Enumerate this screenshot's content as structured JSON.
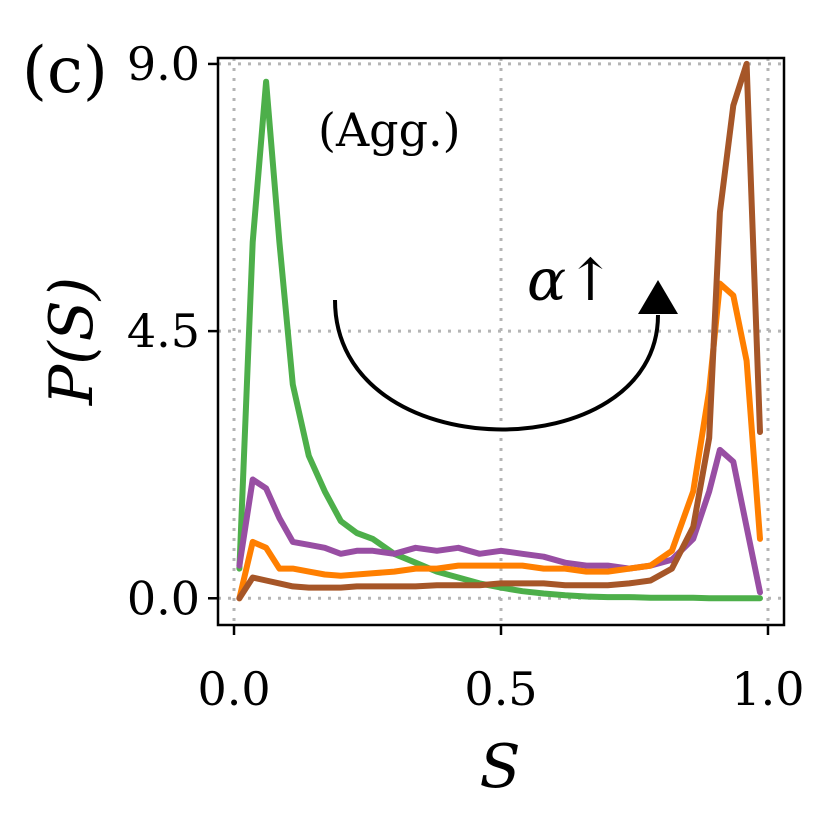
{
  "chart_data": {
    "type": "line",
    "panel_label": "(c)",
    "annotation": "(Agg.)",
    "arrow_label": "α↑",
    "xlabel": "S",
    "ylabel": "P(S)",
    "xlim": [
      -0.03,
      1.03
    ],
    "ylim": [
      -0.45,
      9.1
    ],
    "xticks": [
      0.0,
      0.5,
      1.0
    ],
    "xtick_labels": [
      "0.0",
      "0.5",
      "1.0"
    ],
    "yticks": [
      0.0,
      4.5,
      9.0
    ],
    "ytick_labels": [
      "0.0",
      "4.5",
      "9.0"
    ],
    "grid": true,
    "x": [
      0.01,
      0.035,
      0.06,
      0.085,
      0.11,
      0.14,
      0.17,
      0.2,
      0.23,
      0.26,
      0.3,
      0.34,
      0.38,
      0.42,
      0.46,
      0.5,
      0.54,
      0.58,
      0.62,
      0.66,
      0.7,
      0.74,
      0.78,
      0.82,
      0.86,
      0.89,
      0.91,
      0.935,
      0.96,
      0.985
    ],
    "series": [
      {
        "name": "green",
        "color": "#4daf4a",
        "values": [
          0.5,
          6.0,
          8.7,
          6.0,
          3.6,
          2.4,
          1.8,
          1.3,
          1.1,
          1.0,
          0.75,
          0.6,
          0.45,
          0.35,
          0.25,
          0.18,
          0.12,
          0.08,
          0.05,
          0.03,
          0.02,
          0.02,
          0.01,
          0.01,
          0.01,
          0.0,
          0.0,
          0.0,
          0.0,
          0.0
        ]
      },
      {
        "name": "purple",
        "color": "#984ea3",
        "values": [
          0.55,
          2.0,
          1.85,
          1.35,
          0.95,
          0.9,
          0.85,
          0.75,
          0.8,
          0.8,
          0.75,
          0.85,
          0.8,
          0.85,
          0.75,
          0.8,
          0.75,
          0.7,
          0.6,
          0.55,
          0.55,
          0.5,
          0.55,
          0.65,
          1.0,
          1.8,
          2.5,
          2.3,
          1.2,
          0.1
        ]
      },
      {
        "name": "orange",
        "color": "#ff7f00",
        "values": [
          0.0,
          0.95,
          0.85,
          0.5,
          0.5,
          0.45,
          0.4,
          0.38,
          0.4,
          0.42,
          0.45,
          0.5,
          0.5,
          0.55,
          0.55,
          0.55,
          0.55,
          0.5,
          0.5,
          0.45,
          0.45,
          0.5,
          0.55,
          0.8,
          1.8,
          3.5,
          5.3,
          5.1,
          4.0,
          1.0
        ]
      },
      {
        "name": "brown",
        "color": "#a65628",
        "values": [
          0.0,
          0.35,
          0.3,
          0.25,
          0.2,
          0.18,
          0.18,
          0.18,
          0.2,
          0.2,
          0.2,
          0.2,
          0.22,
          0.22,
          0.22,
          0.25,
          0.25,
          0.25,
          0.22,
          0.22,
          0.22,
          0.25,
          0.3,
          0.5,
          1.2,
          2.7,
          6.5,
          8.3,
          9.0,
          2.8
        ]
      }
    ]
  }
}
